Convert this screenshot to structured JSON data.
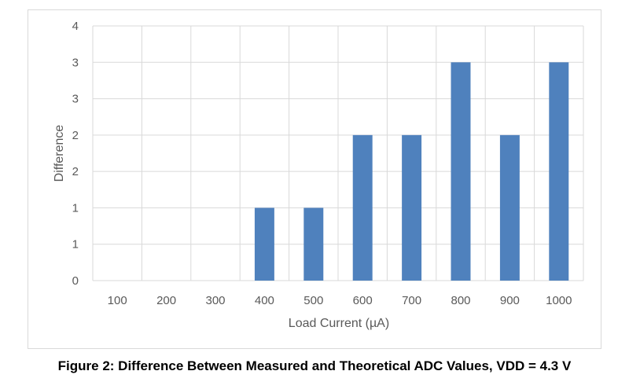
{
  "caption": "Figure 2: Difference Between Measured and Theoretical ADC Values, VDD = 4.3 V",
  "chart_data": {
    "type": "bar",
    "categories": [
      "100",
      "200",
      "300",
      "400",
      "500",
      "600",
      "700",
      "800",
      "900",
      "1000"
    ],
    "values": [
      0,
      0,
      0,
      1,
      1,
      2,
      2,
      3,
      2,
      3
    ],
    "xlabel": "Load Current (µA)",
    "ylabel": "Difference",
    "y_tick_labels": [
      "0",
      "1",
      "1",
      "2",
      "2",
      "3",
      "3",
      "4"
    ],
    "ylim": [
      0,
      3.5
    ],
    "grid": true,
    "legend": "none",
    "bar_color": "#4f81bd",
    "grid_color": "#d9d9d9"
  }
}
